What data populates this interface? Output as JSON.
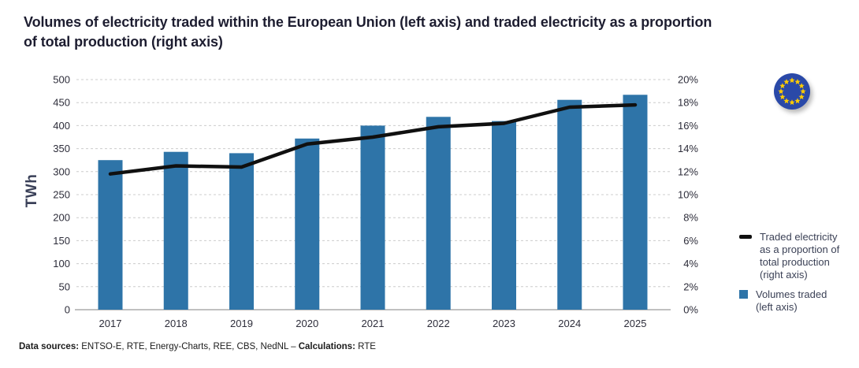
{
  "title": {
    "full": "Volumes of electricity traded within the European Union (left axis) and traded electricity as a proportion of total production (right axis)",
    "line1": "Volumes of electricity traded within the European Union (left axis) and traded electricity as a proportion",
    "line2": "of total production (right axis)"
  },
  "legend": {
    "items": [
      {
        "marker": "black-line",
        "color": "#101010",
        "label": "Traded electricity as a proportion of total production (right axis)"
      },
      {
        "marker": "blue-square",
        "color": "#2e74a8",
        "label": "Volumes traded (left axis)"
      }
    ]
  },
  "flag": {
    "name": "eu-flag",
    "background": "#2a49a8",
    "star_color": "#ffcc00",
    "stars": 12
  },
  "footer": {
    "sources_label": "Data sources:",
    "sources_text": " ENTSO-E, RTE, Energy-Charts, REE, CBS, NedNL – ",
    "calculations_label": "Calculations:",
    "calculations_text": " RTE"
  },
  "chart_data": {
    "type": "bar",
    "title": "Volumes of electricity traded within the European Union (left axis) and traded electricity as a proportion of total production (right axis)",
    "categories": [
      "2017",
      "2018",
      "2019",
      "2020",
      "2021",
      "2022",
      "2023",
      "2024",
      "2025"
    ],
    "series": [
      {
        "name": "Volumes traded (left axis)",
        "type": "bar",
        "axis": "left",
        "unit": "TWh",
        "color": "#2e74a8",
        "values": [
          325,
          343,
          340,
          372,
          400,
          419,
          410,
          456,
          467
        ]
      },
      {
        "name": "Traded electricity as a proportion of total production (right axis)",
        "type": "line",
        "axis": "right",
        "unit": "%",
        "color": "#101010",
        "values": [
          11.8,
          12.5,
          12.4,
          14.4,
          15.0,
          15.9,
          16.2,
          17.6,
          17.8
        ]
      }
    ],
    "left_axis": {
      "label": "TWh",
      "min": 0,
      "max": 500,
      "step": 50
    },
    "right_axis": {
      "label": "%",
      "min": 0,
      "max": 20,
      "step": 2,
      "suffix": "%"
    },
    "grid": "horizontal-dashed",
    "legend_position": "right",
    "colors": {
      "bar": "#2e74a8",
      "line": "#101010",
      "grid": "#cccccc",
      "axis": "#9a9a9a"
    }
  }
}
